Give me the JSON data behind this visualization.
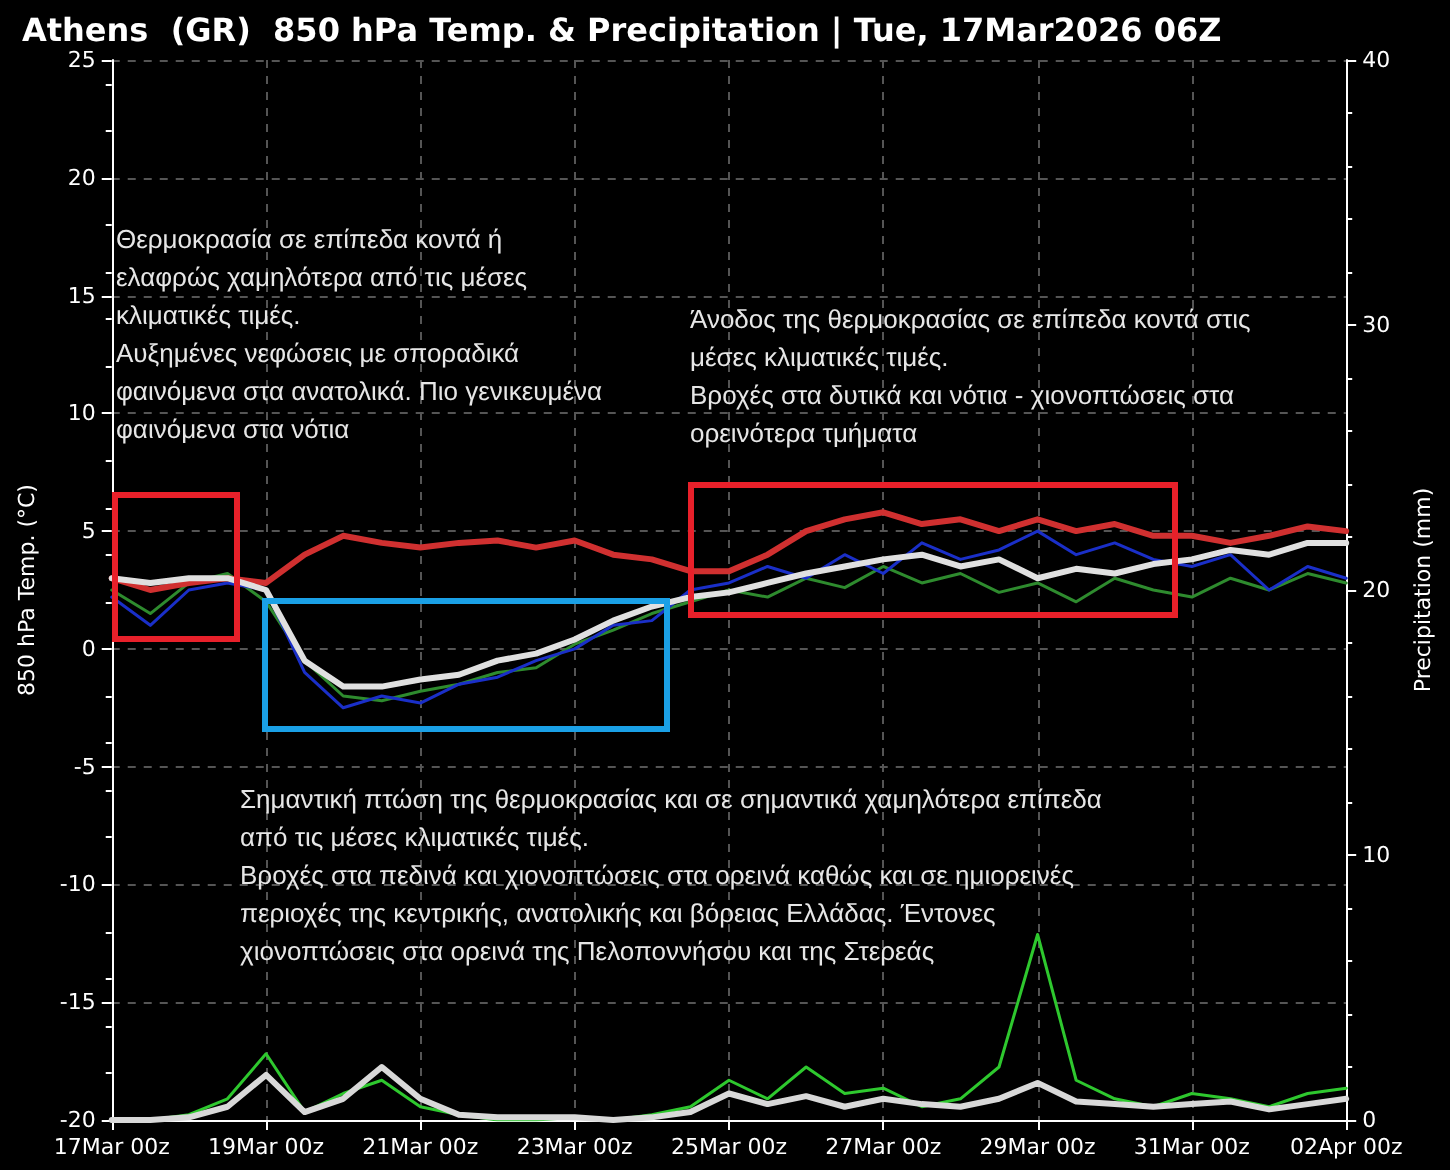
{
  "chart_data": {
    "type": "line",
    "title": "Athens  (GR)  850 hPa Temp. & Precipitation | Tue, 17Mar2026 06Z",
    "ylabel": "850 hPa Temp. (°C)",
    "y2label": "Precipitation (mm)",
    "x": [
      "2026-03-17T00:00",
      "2026-03-17T12:00",
      "2026-03-18T00:00",
      "2026-03-18T12:00",
      "2026-03-19T00:00",
      "2026-03-19T12:00",
      "2026-03-20T00:00",
      "2026-03-20T12:00",
      "2026-03-21T00:00",
      "2026-03-21T12:00",
      "2026-03-22T00:00",
      "2026-03-22T12:00",
      "2026-03-23T00:00",
      "2026-03-23T12:00",
      "2026-03-24T00:00",
      "2026-03-24T12:00",
      "2026-03-25T00:00",
      "2026-03-25T12:00",
      "2026-03-26T00:00",
      "2026-03-26T12:00",
      "2026-03-27T00:00",
      "2026-03-27T12:00",
      "2026-03-28T00:00",
      "2026-03-28T12:00",
      "2026-03-29T00:00",
      "2026-03-29T12:00",
      "2026-03-30T00:00",
      "2026-03-30T12:00",
      "2026-03-31T00:00",
      "2026-03-31T12:00",
      "2026-04-01T00:00",
      "2026-04-01T12:00",
      "2026-04-02T00:00"
    ],
    "series": [
      {
        "color": "#2e8b2e",
        "values": [
          2.5,
          1.5,
          2.8,
          3.2,
          2.0,
          -0.5,
          -2.0,
          -2.2,
          -1.8,
          -1.5,
          -1.0,
          -0.8,
          0.2,
          0.8,
          1.5,
          2.0,
          2.5,
          2.2,
          3.0,
          2.6,
          3.5,
          2.8,
          3.2,
          2.4,
          2.8,
          2.0,
          3.0,
          2.5,
          2.2,
          3.0,
          2.5,
          3.2,
          2.8
        ]
      },
      {
        "color": "#1a2fc8",
        "values": [
          2.2,
          1.0,
          2.5,
          2.8,
          2.5,
          -1.0,
          -2.5,
          -2.0,
          -2.3,
          -1.5,
          -1.2,
          -0.5,
          0.0,
          1.0,
          1.2,
          2.5,
          2.8,
          3.5,
          3.0,
          4.0,
          3.2,
          4.5,
          3.8,
          4.2,
          5.0,
          4.0,
          4.5,
          3.8,
          3.5,
          4.0,
          2.5,
          3.5,
          3.0
        ]
      },
      {
        "color": "#d03030",
        "values": [
          3.0,
          2.5,
          2.8,
          3.0,
          2.8,
          4.0,
          4.8,
          4.5,
          4.3,
          4.5,
          4.6,
          4.3,
          4.6,
          4.0,
          3.8,
          3.3,
          3.3,
          4.0,
          5.0,
          5.5,
          5.8,
          5.3,
          5.5,
          5.0,
          5.5,
          5.0,
          5.3,
          4.8,
          4.8,
          4.5,
          4.8,
          5.2,
          5.0
        ]
      },
      {
        "color": "#e0e0e0",
        "values": [
          3.0,
          2.8,
          3.0,
          3.0,
          2.5,
          -0.5,
          -1.6,
          -1.6,
          -1.3,
          -1.1,
          -0.5,
          -0.2,
          0.4,
          1.2,
          1.8,
          2.2,
          2.4,
          2.8,
          3.2,
          3.5,
          3.8,
          4.0,
          3.5,
          3.8,
          3.0,
          3.4,
          3.2,
          3.6,
          3.8,
          4.2,
          4.0,
          4.5,
          4.5
        ]
      },
      {
        "color": "#2ec82e",
        "axis": "y2",
        "values": [
          0,
          0,
          0.2,
          0.8,
          2.5,
          0.3,
          1.0,
          1.5,
          0.5,
          0.2,
          0,
          0,
          0.1,
          0,
          0.2,
          0.5,
          1.5,
          0.8,
          2.0,
          1.0,
          1.2,
          0.5,
          0.8,
          2.0,
          7.0,
          1.5,
          0.8,
          0.5,
          1.0,
          0.8,
          0.5,
          1.0,
          1.2
        ]
      },
      {
        "color": "#d8d8d8",
        "axis": "y2",
        "values": [
          0,
          0,
          0.1,
          0.5,
          1.7,
          0.3,
          0.8,
          2.0,
          0.8,
          0.2,
          0.1,
          0.1,
          0.1,
          0,
          0.1,
          0.3,
          1.0,
          0.6,
          0.9,
          0.5,
          0.8,
          0.6,
          0.5,
          0.8,
          1.4,
          0.7,
          0.6,
          0.5,
          0.6,
          0.7,
          0.4,
          0.6,
          0.8
        ]
      }
    ],
    "xlim": [
      "2026-03-17T00:00",
      "2026-04-02T00:00"
    ],
    "xticks": [
      {
        "value": "2026-03-17T00:00",
        "label": "17Mar 00z"
      },
      {
        "value": "2026-03-19T00:00",
        "label": "19Mar 00z"
      },
      {
        "value": "2026-03-21T00:00",
        "label": "21Mar 00z"
      },
      {
        "value": "2026-03-23T00:00",
        "label": "23Mar 00z"
      },
      {
        "value": "2026-03-25T00:00",
        "label": "25Mar 00z"
      },
      {
        "value": "2026-03-27T00:00",
        "label": "27Mar 00z"
      },
      {
        "value": "2026-03-29T00:00",
        "label": "29Mar 00z"
      },
      {
        "value": "2026-03-31T00:00",
        "label": "31Mar 00z"
      },
      {
        "value": "2026-04-02T00:00",
        "label": "02Apr 00z"
      }
    ],
    "ylim": [
      -20,
      25
    ],
    "yticks": [
      -20,
      -15,
      -10,
      -5,
      0,
      5,
      10,
      15,
      20,
      25
    ],
    "y2lim": [
      0,
      40
    ],
    "y2ticks": [
      0,
      10,
      20,
      30,
      40
    ],
    "grid": true,
    "marker": "none",
    "line_style": "solid",
    "annotations": [
      "Θερμοκρασία σε επίπεδα κοντά ή ελαφρώς χαμηλότερα από τις μέσες κλιματικές τιμές.\nΑυξημένες νεφώσεις με σποραδικά φαινόμενα στα ανατολικά. Πιο γενικευμένα φαινόμενα στα νότια",
      "Άνοδος της θερμοκρασίας σε επίπεδα κοντά στις μέσες κλιματικές τιμές.\nΒροχές στα δυτικά και νότια - χιονοπτώσεις στα ορεινότερα τμήματα",
      "Σημαντική πτώση της θερμοκρασίας και σε σημαντικά χαμηλότερα επίπεδα από τις μέσες κλιματικές τιμές.\nΒροχές στα πεδινά και χιονοπτώσεις στα ορεινά καθώς και σε ημιορεινές περιοχές της κεντρικής, ανατολικής και βόρειας Ελλάδας. Έντονες χιονοπτώσεις στα ορεινά της Πελοποννήσου και της Στερεάς"
    ]
  }
}
